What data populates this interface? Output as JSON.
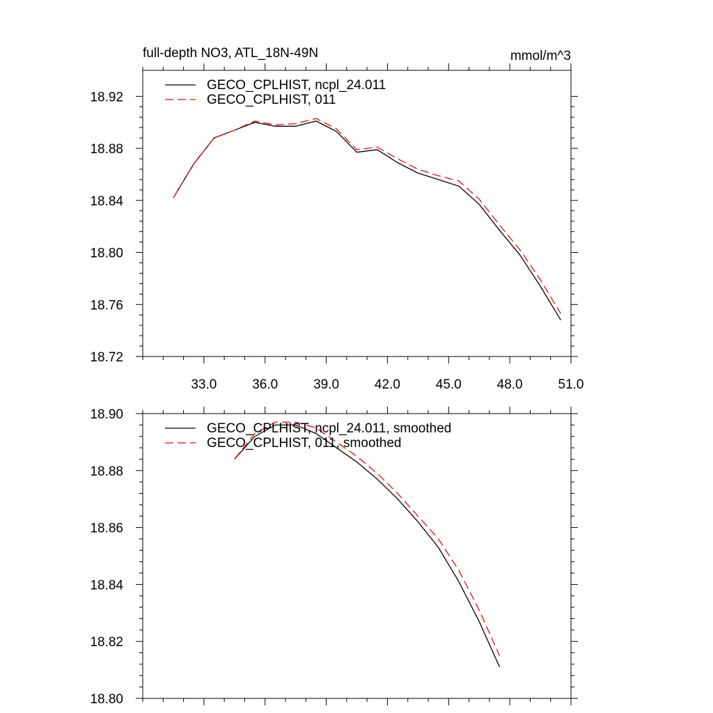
{
  "chart_data": [
    {
      "type": "line",
      "title_left": "full-depth NO3, ATL_18N-49N",
      "title_right": "mmol/m^3",
      "xlabel": "",
      "ylabel": "",
      "xlim": [
        30.0,
        51.0
      ],
      "ylim": [
        18.72,
        18.94
      ],
      "xticks": [
        33.0,
        36.0,
        39.0,
        42.0,
        45.0,
        48.0,
        51.0
      ],
      "xtick_labels": [
        "33.0",
        "36.0",
        "39.0",
        "42.0",
        "45.0",
        "48.0",
        "51.0"
      ],
      "yticks": [
        18.72,
        18.76,
        18.8,
        18.84,
        18.88,
        18.92
      ],
      "ytick_labels": [
        "18.72",
        "18.76",
        "18.80",
        "18.84",
        "18.88",
        "18.92"
      ],
      "legend_position": "top-left",
      "series": [
        {
          "name": "GECO_CPLHIST, ncpl_24.011",
          "color": "#000000",
          "dash": "solid",
          "x": [
            31.5,
            32.5,
            33.5,
            34.5,
            35.5,
            36.5,
            37.5,
            38.5,
            39.5,
            40.5,
            41.5,
            42.5,
            43.5,
            44.5,
            45.5,
            46.5,
            47.5,
            48.5,
            49.5,
            50.5
          ],
          "values": [
            18.842,
            18.868,
            18.888,
            18.894,
            18.9,
            18.897,
            18.897,
            18.901,
            18.893,
            18.877,
            18.879,
            18.869,
            18.861,
            18.856,
            18.851,
            18.837,
            18.817,
            18.798,
            18.774,
            18.748
          ]
        },
        {
          "name": "GECO_CPLHIST, 011",
          "color": "#ff0000",
          "dash": "dashed",
          "x": [
            31.5,
            32.5,
            33.5,
            34.5,
            35.5,
            36.5,
            37.5,
            38.5,
            39.5,
            40.5,
            41.5,
            42.5,
            43.5,
            44.5,
            45.5,
            46.5,
            47.5,
            48.5,
            49.5,
            50.5
          ],
          "values": [
            18.842,
            18.868,
            18.888,
            18.894,
            18.901,
            18.898,
            18.899,
            18.903,
            18.895,
            18.879,
            18.881,
            18.872,
            18.864,
            18.859,
            18.855,
            18.841,
            18.821,
            18.802,
            18.779,
            18.753
          ]
        }
      ]
    },
    {
      "type": "line",
      "title_left": "",
      "title_right": "",
      "xlabel": "",
      "ylabel": "",
      "xlim": [
        30.0,
        51.0
      ],
      "ylim": [
        18.8,
        18.9
      ],
      "xticks": [
        33.0,
        36.0,
        39.0,
        42.0,
        45.0,
        48.0,
        51.0
      ],
      "xtick_labels": [],
      "yticks": [
        18.8,
        18.82,
        18.84,
        18.86,
        18.88,
        18.9
      ],
      "ytick_labels": [
        "18.80",
        "18.82",
        "18.84",
        "18.86",
        "18.88",
        "18.90"
      ],
      "legend_position": "top-left",
      "series": [
        {
          "name": "GECO_CPLHIST, ncpl_24.011, smoothed",
          "color": "#000000",
          "dash": "solid",
          "x": [
            34.5,
            35.5,
            36.5,
            37.5,
            38.5,
            39.5,
            40.5,
            41.5,
            42.5,
            43.5,
            44.5,
            45.5,
            46.5,
            47.5
          ],
          "values": [
            18.884,
            18.892,
            18.896,
            18.896,
            18.893,
            18.888,
            18.883,
            18.877,
            18.87,
            18.862,
            18.853,
            18.841,
            18.827,
            18.811
          ]
        },
        {
          "name": "GECO_CPLHIST, 011, smoothed",
          "color": "#ff0000",
          "dash": "dashed",
          "x": [
            34.5,
            35.5,
            36.5,
            37.5,
            38.5,
            39.5,
            40.5,
            41.5,
            42.5,
            43.5,
            44.5,
            45.5,
            46.5,
            47.5
          ],
          "values": [
            18.884,
            18.893,
            18.897,
            18.897,
            18.895,
            18.89,
            18.885,
            18.879,
            18.872,
            18.864,
            18.856,
            18.845,
            18.831,
            18.815
          ]
        }
      ]
    }
  ]
}
